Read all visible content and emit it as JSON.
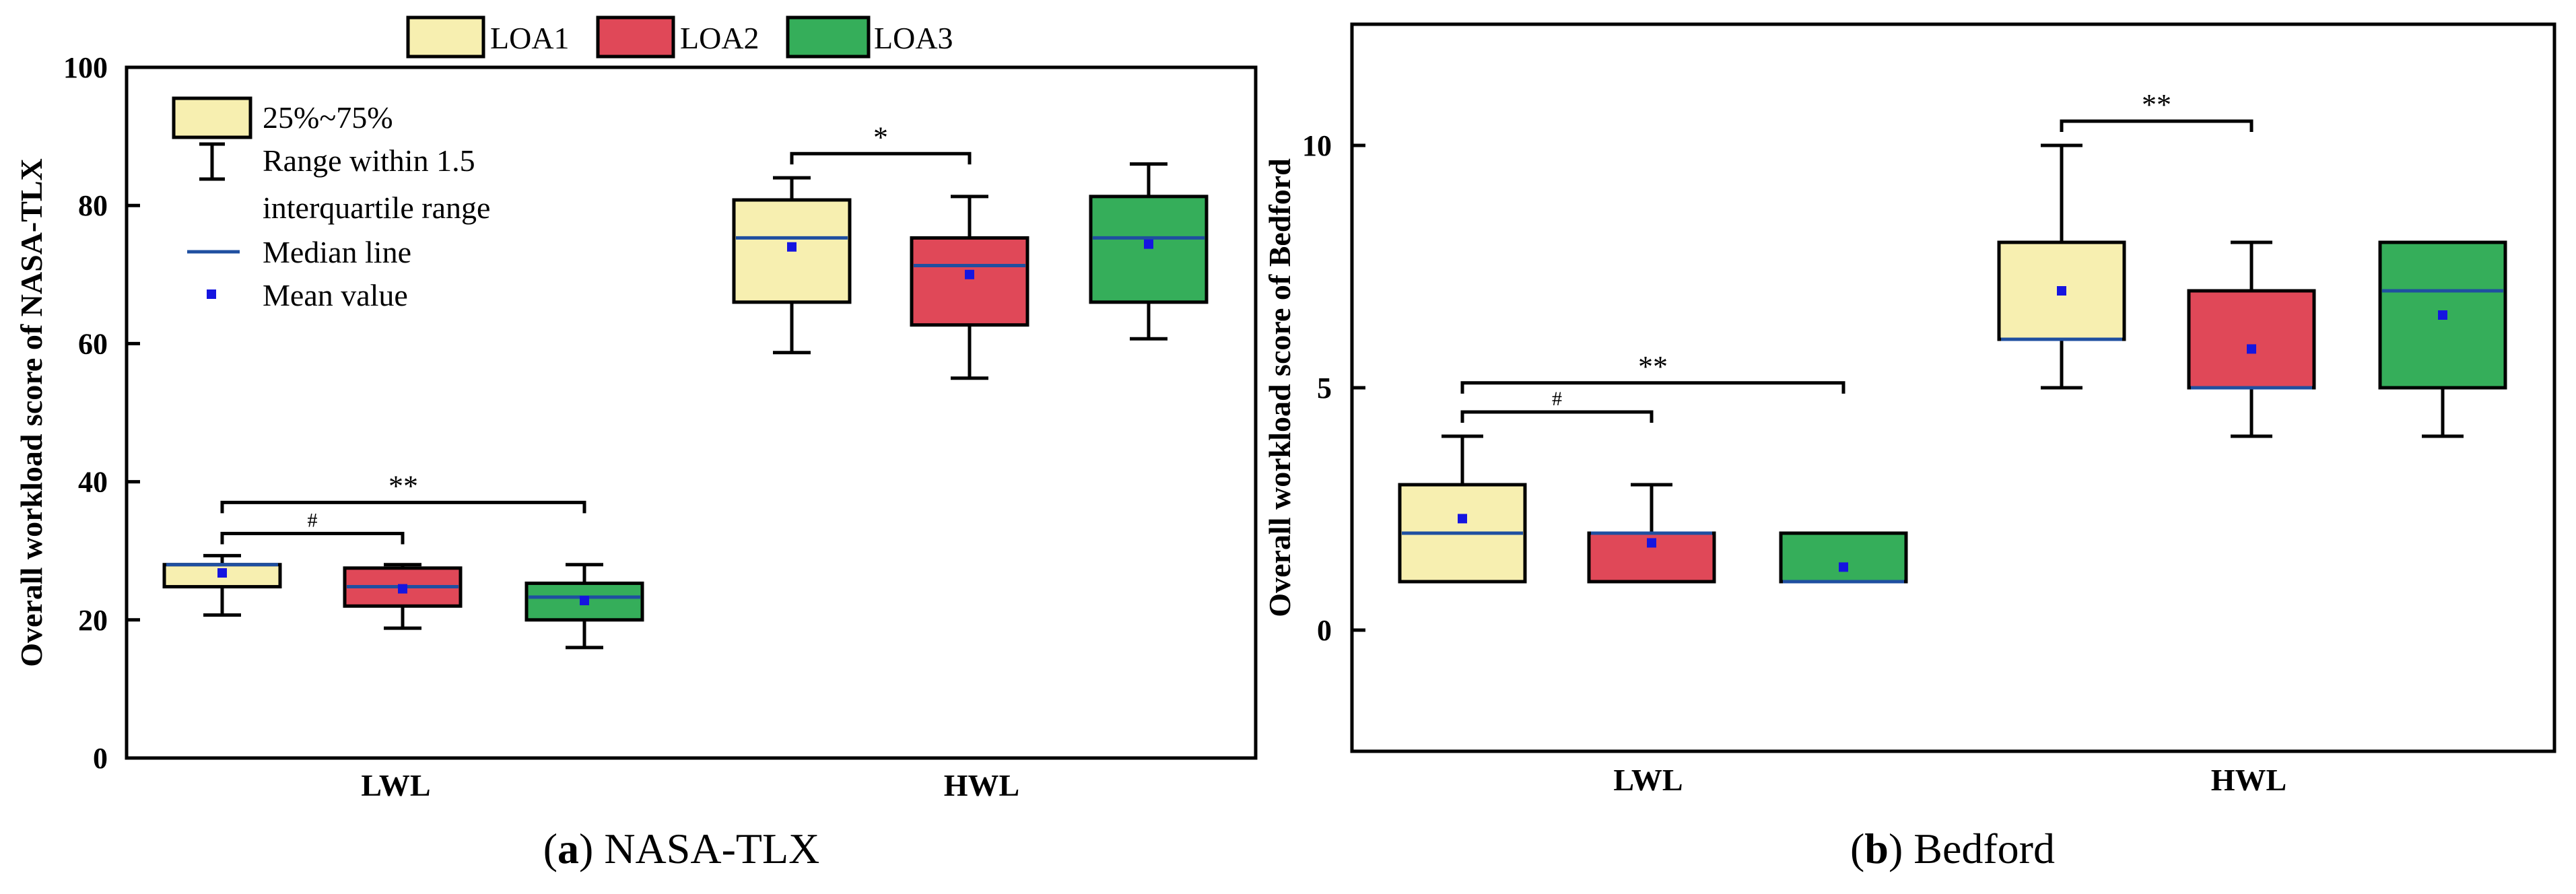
{
  "legend": {
    "items": [
      {
        "name": "LOA1",
        "color": "#f7efb0"
      },
      {
        "name": "LOA2",
        "color": "#e04858"
      },
      {
        "name": "LOA3",
        "color": "#35ae5a"
      }
    ]
  },
  "inner_legend": {
    "box_label": "25%~75%",
    "whisker_label_line1": "Range within 1.5",
    "whisker_label_line2": "interquartile range",
    "median_label": "Median line",
    "mean_label": "Mean value",
    "median_color": "#1f4fa0",
    "mean_color": "#1515e0"
  },
  "captions": {
    "a_letter": "a",
    "a_text": " NASA-TLX",
    "b_letter": "b",
    "b_text": " Bedford"
  },
  "chart_data": [
    {
      "type": "box",
      "id": "a",
      "ylabel": "Overall workload score of NASA-TLX",
      "ylim": [
        0,
        100
      ],
      "yticks": [
        0,
        20,
        40,
        60,
        80,
        100
      ],
      "categories": [
        "LWL",
        "HWL"
      ],
      "series_names": [
        "LOA1",
        "LOA2",
        "LOA3"
      ],
      "boxes": [
        {
          "category": "LWL",
          "series": "LOA1",
          "whisker_low": 20.7,
          "q1": 24.8,
          "median": 28.0,
          "q3": 28.0,
          "whisker_high": 29.3,
          "mean": 26.8
        },
        {
          "category": "LWL",
          "series": "LOA2",
          "whisker_low": 18.8,
          "q1": 22.0,
          "median": 24.8,
          "q3": 27.5,
          "whisker_high": 28.0,
          "mean": 24.5
        },
        {
          "category": "LWL",
          "series": "LOA3",
          "whisker_low": 16.0,
          "q1": 20.0,
          "median": 23.3,
          "q3": 25.3,
          "whisker_high": 28.0,
          "mean": 22.8
        },
        {
          "category": "HWL",
          "series": "LOA1",
          "whisker_low": 58.7,
          "q1": 66.0,
          "median": 75.3,
          "q3": 80.8,
          "whisker_high": 84.0,
          "mean": 74.0
        },
        {
          "category": "HWL",
          "series": "LOA2",
          "whisker_low": 55.0,
          "q1": 62.7,
          "median": 71.3,
          "q3": 75.3,
          "whisker_high": 81.3,
          "mean": 70.0
        },
        {
          "category": "HWL",
          "series": "LOA3",
          "whisker_low": 60.7,
          "q1": 66.0,
          "median": 75.3,
          "q3": 81.3,
          "whisker_high": 86.0,
          "mean": 74.4
        }
      ],
      "significance": [
        {
          "label": "#",
          "category": "LWL",
          "from": "LOA1",
          "to": "LOA2",
          "y": 32.5
        },
        {
          "label": "**",
          "category": "LWL",
          "from": "LOA1",
          "to": "LOA3",
          "y": 37.0
        },
        {
          "label": "*",
          "category": "HWL",
          "from": "LOA1",
          "to": "LOA2",
          "y": 87.5
        }
      ]
    },
    {
      "type": "box",
      "id": "b",
      "ylabel": "Overall workload score of Bedford",
      "ylim": [
        -2.5,
        12.5
      ],
      "yticks": [
        0,
        5,
        10
      ],
      "categories": [
        "LWL",
        "HWL"
      ],
      "series_names": [
        "LOA1",
        "LOA2",
        "LOA3"
      ],
      "boxes": [
        {
          "category": "LWL",
          "series": "LOA1",
          "whisker_low": 1,
          "q1": 1,
          "median": 2,
          "q3": 3,
          "whisker_high": 4,
          "mean": 2.3
        },
        {
          "category": "LWL",
          "series": "LOA2",
          "whisker_low": 1,
          "q1": 1,
          "median": 2,
          "q3": 2,
          "whisker_high": 3,
          "mean": 1.8
        },
        {
          "category": "LWL",
          "series": "LOA3",
          "whisker_low": 1,
          "q1": 1,
          "median": 1,
          "q3": 2,
          "whisker_high": 2,
          "mean": 1.3
        },
        {
          "category": "HWL",
          "series": "LOA1",
          "whisker_low": 5,
          "q1": 6,
          "median": 6,
          "q3": 8,
          "whisker_high": 10,
          "mean": 7.0
        },
        {
          "category": "HWL",
          "series": "LOA2",
          "whisker_low": 4,
          "q1": 5,
          "median": 5,
          "q3": 7,
          "whisker_high": 8,
          "mean": 5.8
        },
        {
          "category": "HWL",
          "series": "LOA3",
          "whisker_low": 4,
          "q1": 5,
          "median": 7,
          "q3": 8,
          "whisker_high": 8,
          "mean": 6.5
        }
      ],
      "significance": [
        {
          "label": "#",
          "category": "LWL",
          "from": "LOA1",
          "to": "LOA2",
          "y": 4.5
        },
        {
          "label": "**",
          "category": "LWL",
          "from": "LOA1",
          "to": "LOA3",
          "y": 5.1
        },
        {
          "label": "**",
          "category": "HWL",
          "from": "LOA1",
          "to": "LOA2",
          "y": 10.5
        }
      ]
    }
  ]
}
